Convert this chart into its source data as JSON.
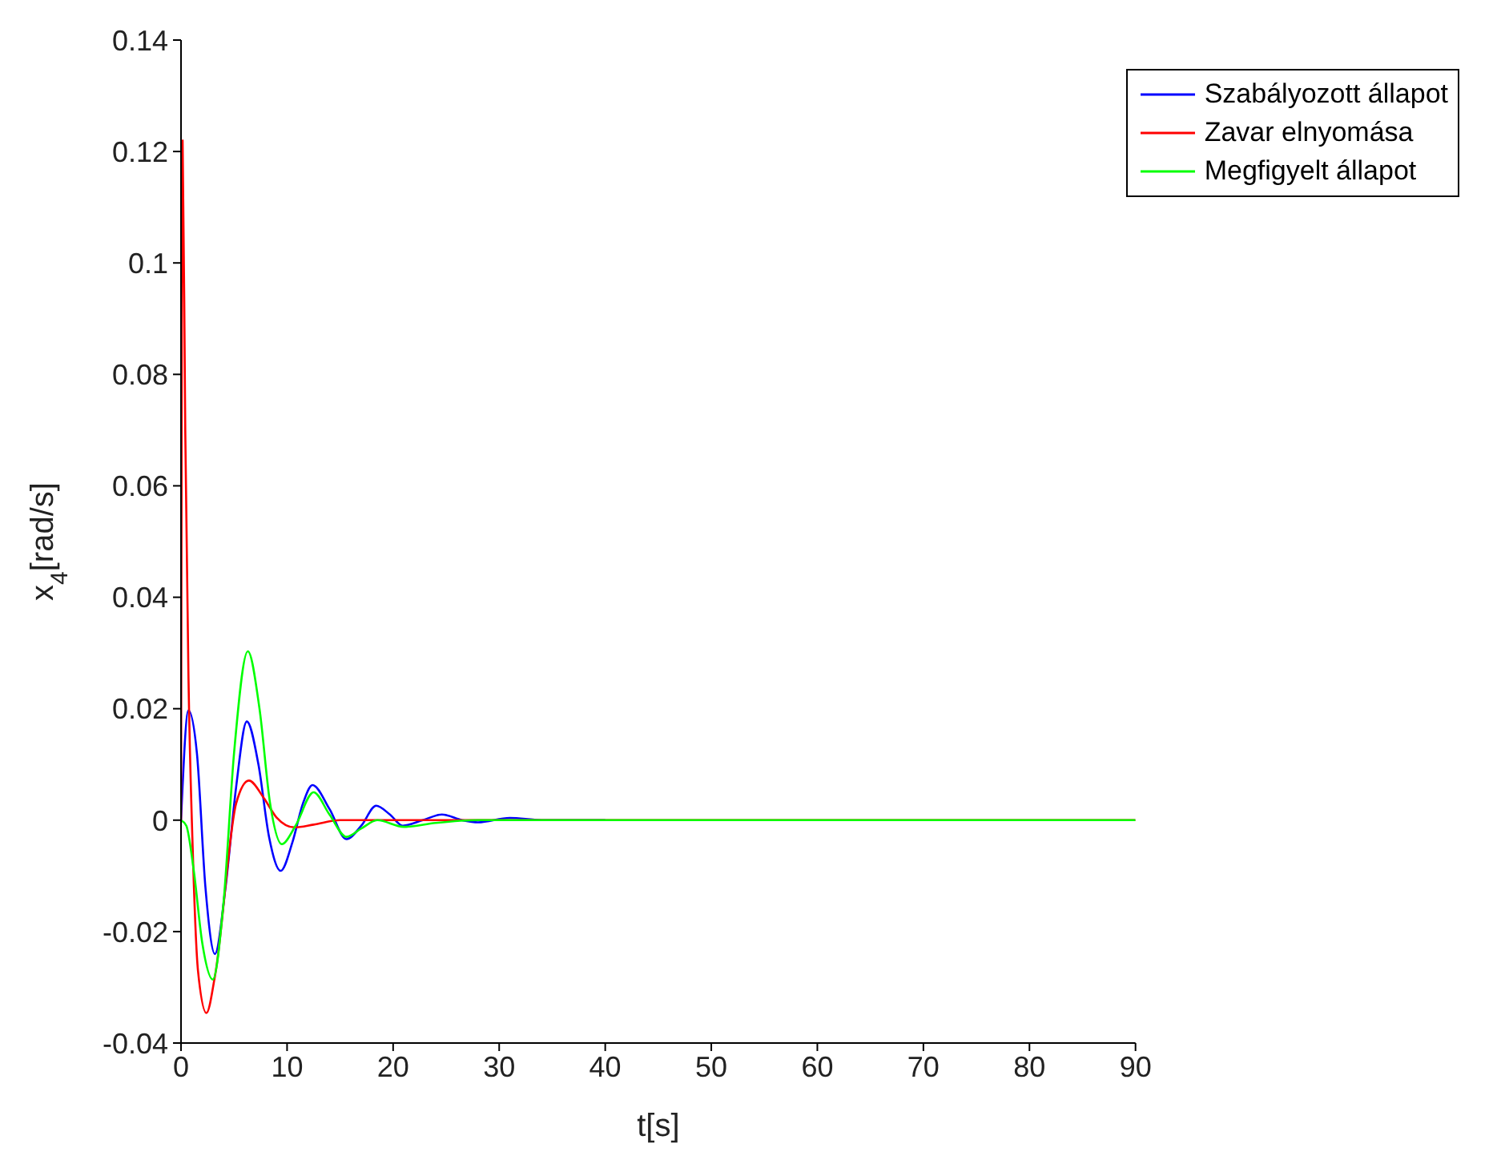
{
  "chart_data": {
    "type": "line",
    "xlabel": "t[s]",
    "ylabel": "x$_{4}$[rad/s]",
    "xlim": [
      0,
      90
    ],
    "xticks": [
      0,
      10,
      20,
      30,
      40,
      50,
      60,
      70,
      80,
      90
    ],
    "ylim": [
      -0.04,
      0.14
    ],
    "yticks": [
      -0.04,
      -0.02,
      0,
      0.02,
      0.04,
      0.06,
      0.08,
      0.1,
      0.12,
      0.14
    ],
    "grid": false,
    "legend": "top right",
    "marker": "none",
    "line_style": "solid",
    "series": [
      {
        "name": "Szabályozott állapot",
        "color": "#0000ff",
        "x": [
          0,
          0.7,
          1.5,
          2.3,
          3.2,
          4.2,
          5.2,
          6.2,
          7.3,
          8.3,
          9.4,
          10.5,
          11.5,
          12.4,
          14,
          15.6,
          17,
          18.4,
          19.7,
          20.9,
          22.8,
          24.6,
          26.5,
          28,
          31,
          34,
          40
        ],
        "values": [
          0,
          0.0197,
          0.012,
          -0.012,
          -0.024,
          -0.012,
          0.006,
          0.0177,
          0.01,
          -0.003,
          -0.0091,
          -0.004,
          0.003,
          0.0063,
          0.002,
          -0.0034,
          -0.001,
          0.0026,
          0.001,
          -0.001,
          0,
          0.001,
          0,
          -0.0004,
          0.0004,
          0,
          0
        ]
      },
      {
        "name": "Zavar elnyomása",
        "color": "#ff0000",
        "x": [
          0,
          0.15,
          0.4,
          0.7,
          1.1,
          1.6,
          2.4,
          3.2,
          5.2,
          6.4,
          7.8,
          9,
          10.7,
          12.5,
          15,
          20,
          30,
          50,
          90
        ],
        "values": [
          0,
          0.122,
          0.07,
          0.026,
          -0.005,
          -0.027,
          -0.0346,
          -0.028,
          0.003,
          0.0071,
          0.004,
          0.0005,
          -0.0013,
          -0.0008,
          0,
          0,
          0,
          0,
          0
        ]
      },
      {
        "name": "Megfigyelt állapot",
        "color": "#00ff00",
        "x": [
          0,
          0.5,
          1.2,
          2,
          3,
          4,
          5,
          6.3,
          7.4,
          8.4,
          9.5,
          10.8,
          12.5,
          14,
          15.6,
          17,
          18.5,
          21,
          24,
          28,
          35,
          50,
          70,
          90
        ],
        "values": [
          0,
          -0.001,
          -0.009,
          -0.022,
          -0.0286,
          -0.015,
          0.012,
          0.0303,
          0.02,
          0.003,
          -0.0043,
          -0.001,
          0.005,
          0.001,
          -0.003,
          -0.0015,
          0,
          -0.0012,
          -0.0005,
          0,
          0,
          0,
          0,
          0
        ]
      }
    ]
  }
}
